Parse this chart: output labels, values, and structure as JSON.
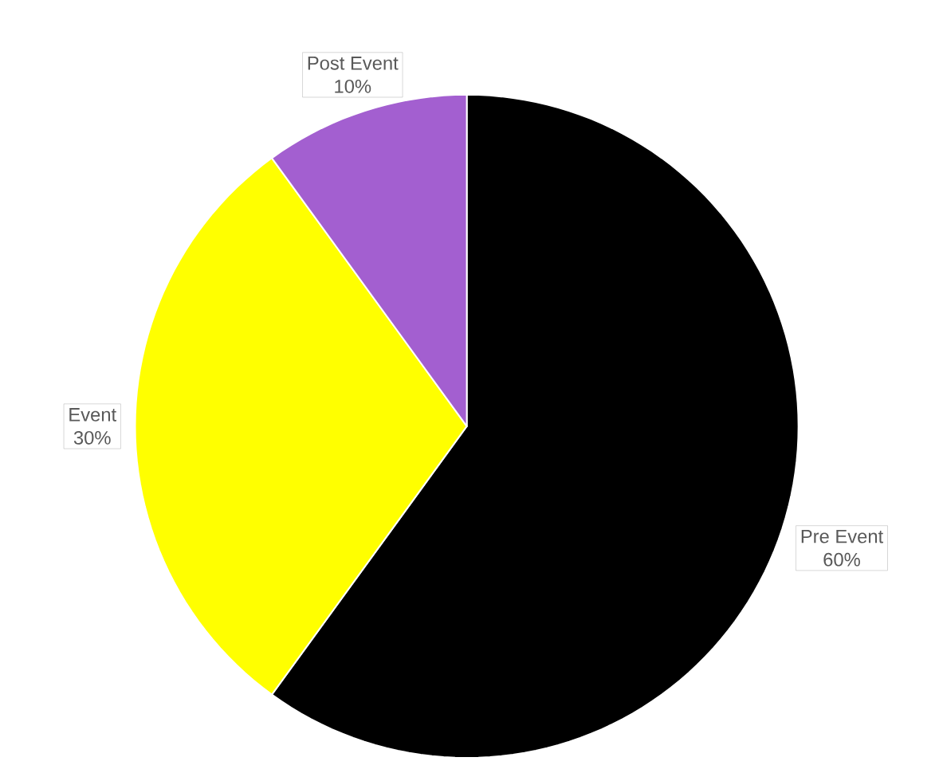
{
  "chart_data": {
    "type": "pie",
    "categories": [
      "Pre Event",
      "Event",
      "Post Event"
    ],
    "values": [
      60,
      30,
      10
    ],
    "colors": [
      "#000000",
      "#ffff00",
      "#a35fd0"
    ],
    "value_labels": [
      "60%",
      "30%",
      "10%"
    ]
  }
}
